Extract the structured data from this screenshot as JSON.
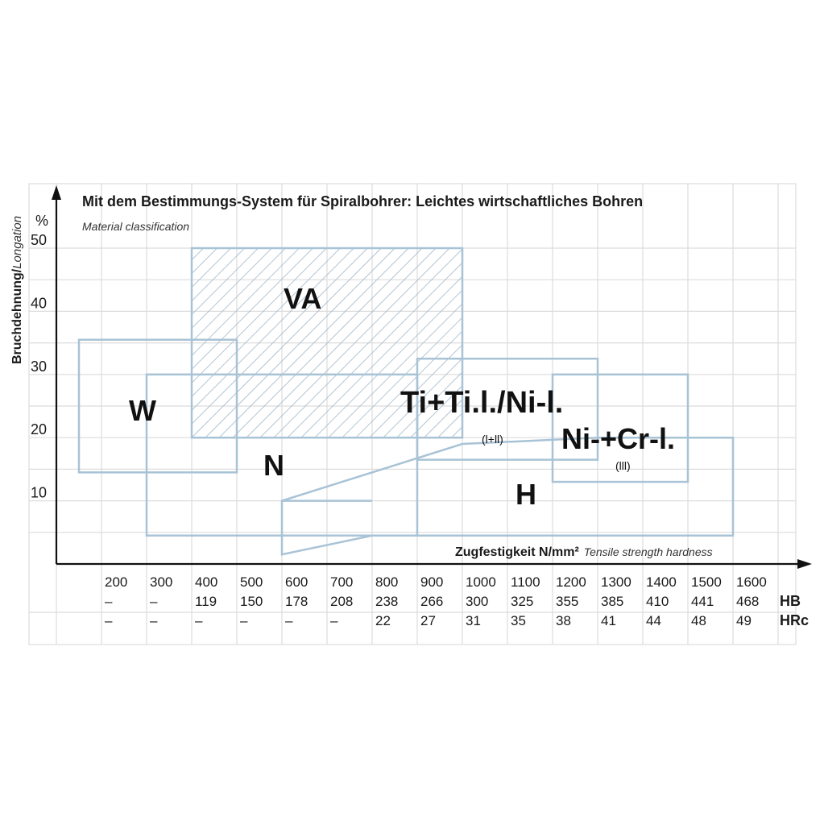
{
  "chart_data": {
    "type": "area",
    "title": "Mit dem Bestimmungs-System für Spiralbohrer: Leichtes wirtschaftliches Bohren",
    "subtitle": "Material classification",
    "ylabel": "Bruchdehnung/",
    "ylabel_en": "Longation",
    "yunit": "%",
    "xlabel": "Zugfestigkeit N/mm²",
    "xlabel_en": "Tensile strength hardness",
    "x_ticks": [
      "200",
      "300",
      "400",
      "500",
      "600",
      "700",
      "800",
      "900",
      "1000",
      "1100",
      "1200",
      "1300",
      "1400",
      "1500",
      "1600"
    ],
    "hb_label": "HB",
    "hrc_label": "HRc",
    "hb_values": [
      "–",
      "–",
      "119",
      "150",
      "178",
      "208",
      "238",
      "266",
      "300",
      "325",
      "355",
      "385",
      "410",
      "441",
      "468"
    ],
    "hrc_values": [
      "–",
      "–",
      "–",
      "–",
      "–",
      "–",
      "22",
      "27",
      "31",
      "35",
      "38",
      "41",
      "44",
      "48",
      "49"
    ],
    "y_ticks": [
      "10",
      "20",
      "30",
      "40",
      "50"
    ],
    "xlim": [
      100,
      1700
    ],
    "ylim": [
      0,
      53
    ],
    "grid": true,
    "regions": [
      {
        "label": "VA",
        "x": [
          400,
          1000
        ],
        "y": [
          20,
          50
        ],
        "hatched": true
      },
      {
        "label": "W",
        "x": [
          150,
          500
        ],
        "y": [
          14.5,
          35.5
        ]
      },
      {
        "label": "N",
        "x": [
          300,
          900
        ],
        "y": [
          4.5,
          30
        ]
      },
      {
        "label": "Ti+Ti.l./Ni-l.",
        "sub": "(l+ll)",
        "x": [
          900,
          1300
        ],
        "y": [
          16.5,
          32.5
        ]
      },
      {
        "label": "Ni-+Cr-l.",
        "sub": "(lll)",
        "x": [
          1200,
          1500
        ],
        "y": [
          13,
          30
        ]
      },
      {
        "label": "H",
        "x": [
          600,
          1600
        ],
        "y": [
          1.5,
          20
        ]
      }
    ]
  }
}
